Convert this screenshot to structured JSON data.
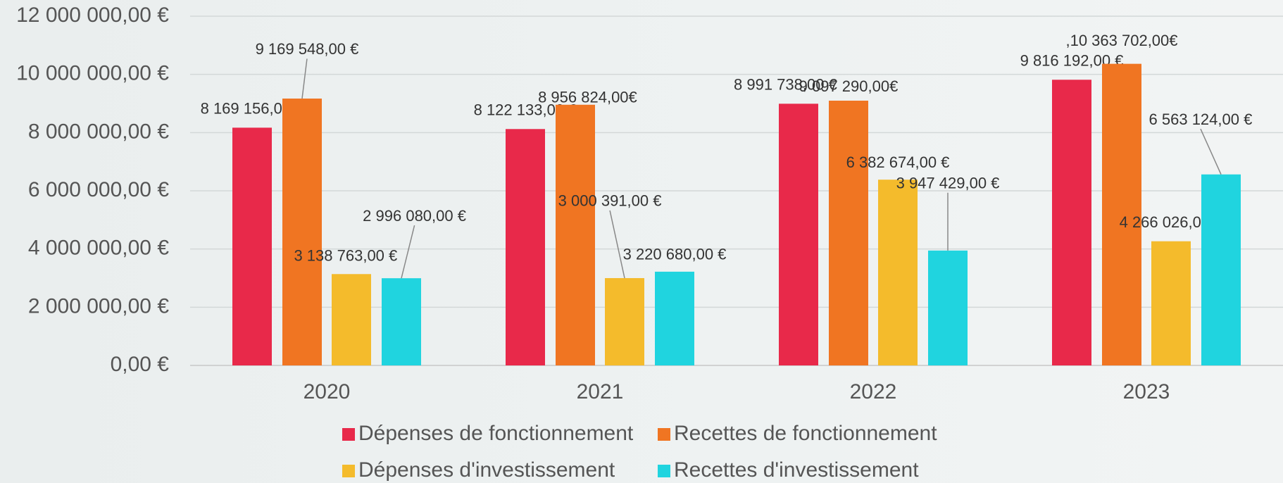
{
  "chart_data": {
    "type": "bar",
    "categories": [
      "2020",
      "2021",
      "2022",
      "2023"
    ],
    "series": [
      {
        "name": "Dépenses de fonctionnement",
        "color": "#e8294a",
        "values": [
          8169156,
          8122133,
          8991738,
          9816192
        ],
        "value_labels": [
          "8 169 156,00 €",
          "8 122 133,00 €",
          "8 991 738,00 €",
          "9 816 192,00 €"
        ]
      },
      {
        "name": "Recettes de fonctionnement",
        "color": "#f07522",
        "values": [
          9169548,
          8956824,
          9097290,
          10363702
        ],
        "value_labels": [
          "9 169 548,00 €",
          "8 956 824,00€",
          "9 097 290,00€",
          ",10 363 702,00€"
        ]
      },
      {
        "name": "Dépenses d'investissement",
        "color": "#f4bb2c",
        "values": [
          3138763,
          3000391,
          6382674,
          4266026
        ],
        "value_labels": [
          "3 138 763,00 €",
          "3 000 391,00 €",
          "6 382 674,00 €",
          "4 266 026,00 €"
        ]
      },
      {
        "name": "Recettes d'investissement",
        "color": "#20d4df",
        "values": [
          2996080,
          3220680,
          3947429,
          6563124
        ],
        "value_labels": [
          "2 996 080,00 €",
          "3 220 680,00 €",
          "3 947 429,00 €",
          "6 563 124,00 €"
        ]
      }
    ],
    "ylim": [
      0,
      12000000
    ],
    "yticks": [
      {
        "value": 0,
        "label": "0,00 €"
      },
      {
        "value": 2000000,
        "label": "2 000 000,00 €"
      },
      {
        "value": 4000000,
        "label": "4 000 000,00 €"
      },
      {
        "value": 6000000,
        "label": "6 000 000,00 €"
      },
      {
        "value": 8000000,
        "label": "8 000 000,00 €"
      },
      {
        "value": 10000000,
        "label": "10 000 000,00 €"
      },
      {
        "value": 12000000,
        "label": "12 000 000,00 €"
      }
    ],
    "grid": true,
    "legend": "bottom"
  }
}
